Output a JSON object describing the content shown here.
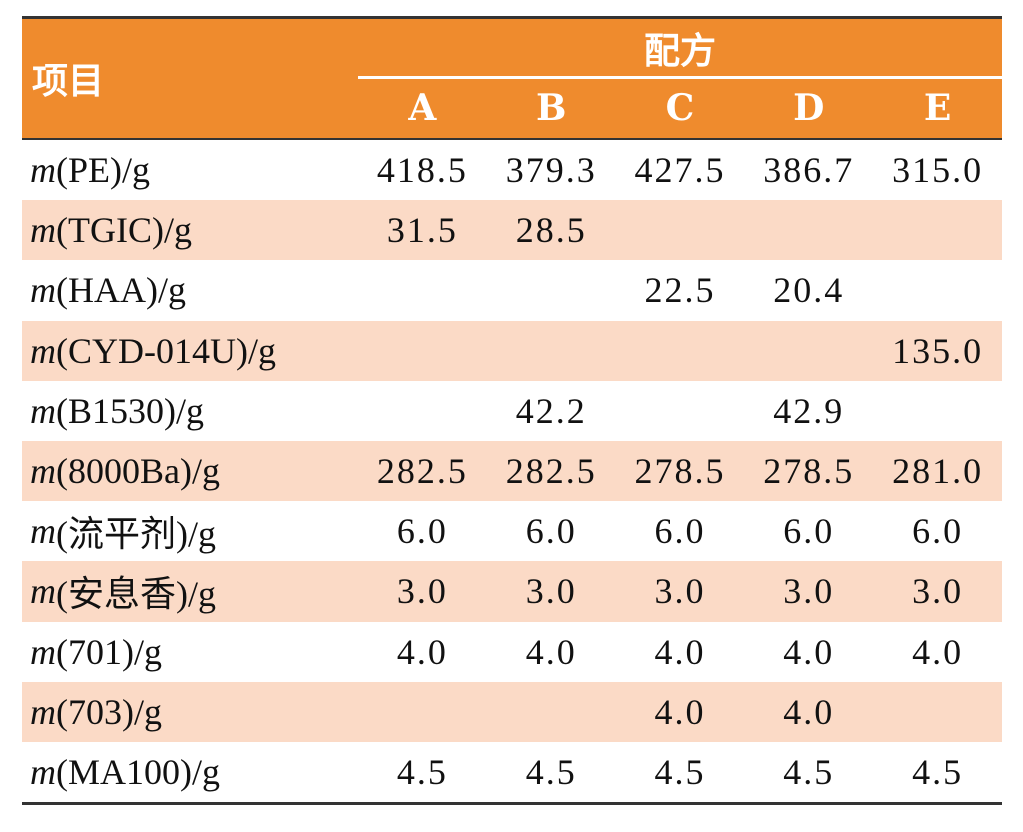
{
  "table": {
    "corner": "项目",
    "group_header": "配方",
    "columns": [
      "A",
      "B",
      "C",
      "D",
      "E"
    ],
    "rows": [
      [
        "m(PE)/g",
        "418.5",
        "379.3",
        "427.5",
        "386.7",
        "315.0"
      ],
      [
        "m(TGIC)/g",
        "31.5",
        "28.5",
        null,
        null,
        null
      ],
      [
        "m(HAA)/g",
        null,
        null,
        "22.5",
        "20.4",
        null
      ],
      [
        "m(CYD-014U)/g",
        null,
        null,
        null,
        null,
        "135.0"
      ],
      [
        "m(B1530)/g",
        null,
        "42.2",
        null,
        "42.9",
        null
      ],
      [
        "m(8000Ba)/g",
        "282.5",
        "282.5",
        "278.5",
        "278.5",
        "281.0"
      ],
      [
        "m(流平剂)/g",
        "6.0",
        "6.0",
        "6.0",
        "6.0",
        "6.0"
      ],
      [
        "m(安息香)/g",
        "3.0",
        "3.0",
        "3.0",
        "3.0",
        "3.0"
      ],
      [
        "m(701)/g",
        "4.0",
        "4.0",
        "4.0",
        "4.0",
        "4.0"
      ],
      [
        "m(703)/g",
        null,
        null,
        "4.0",
        "4.0",
        null
      ],
      [
        "m(MA100)/g",
        "4.5",
        "4.5",
        "4.5",
        "4.5",
        "4.5"
      ]
    ]
  }
}
